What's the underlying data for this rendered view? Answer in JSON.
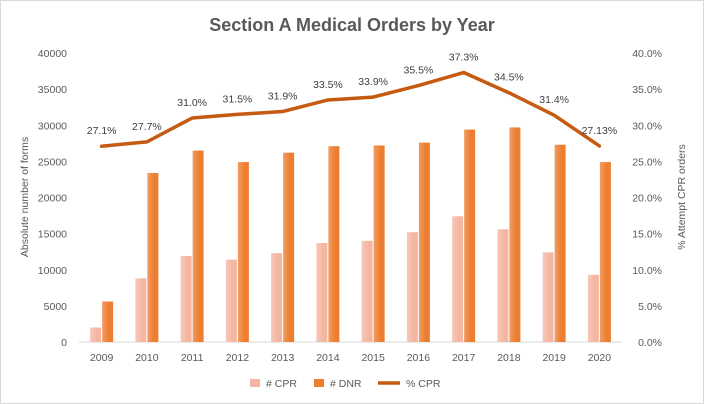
{
  "chart_data": {
    "type": "bar",
    "title": "Section A Medical Orders by Year",
    "xlabel": "",
    "ylabel": "Absolute number of forms",
    "y2label": "% Attempt CPR orders",
    "categories": [
      "2009",
      "2010",
      "2011",
      "2012",
      "2013",
      "2014",
      "2015",
      "2016",
      "2017",
      "2018",
      "2019",
      "2020"
    ],
    "series": [
      {
        "name": "# CPR",
        "kind": "bar",
        "axis": "left",
        "color": "#f4b6a1",
        "values": [
          2000,
          8800,
          11900,
          11400,
          12300,
          13700,
          14000,
          15200,
          17400,
          15600,
          12400,
          9300
        ]
      },
      {
        "name": "# DNR",
        "kind": "bar",
        "axis": "left",
        "color": "#ed7d31",
        "values": [
          5600,
          23400,
          26500,
          24900,
          26200,
          27100,
          27200,
          27600,
          29400,
          29700,
          27300,
          24900
        ]
      },
      {
        "name": "% CPR",
        "kind": "line",
        "axis": "right",
        "color": "#c55a11",
        "values": [
          27.1,
          27.7,
          31.0,
          31.5,
          31.9,
          33.5,
          33.9,
          35.5,
          37.3,
          34.5,
          31.4,
          27.13
        ],
        "labels": [
          "27.1%",
          "27.7%",
          "31.0%",
          "31.5%",
          "31.9%",
          "33.5%",
          "33.9%",
          "35.5%",
          "37.3%",
          "34.5%",
          "31.4%",
          "27.13%"
        ]
      }
    ],
    "ylim": [
      0,
      40000
    ],
    "yticks": [
      "0",
      "5000",
      "10000",
      "15000",
      "20000",
      "25000",
      "30000",
      "35000",
      "40000"
    ],
    "y2lim": [
      0,
      40
    ],
    "y2ticks": [
      "0.0%",
      "5.0%",
      "10.0%",
      "15.0%",
      "20.0%",
      "25.0%",
      "30.0%",
      "35.0%",
      "40.0%"
    ],
    "legend": "bottom",
    "grid": false
  }
}
